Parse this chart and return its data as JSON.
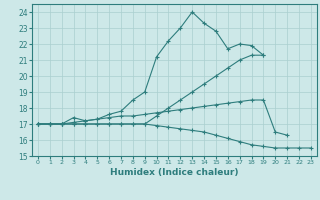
{
  "xlabel": "Humidex (Indice chaleur)",
  "ylabel": "",
  "xlim": [
    -0.5,
    23.5
  ],
  "ylim": [
    15,
    24.5
  ],
  "yticks": [
    15,
    16,
    17,
    18,
    19,
    20,
    21,
    22,
    23,
    24
  ],
  "xticks": [
    0,
    1,
    2,
    3,
    4,
    5,
    6,
    7,
    8,
    9,
    10,
    11,
    12,
    13,
    14,
    15,
    16,
    17,
    18,
    19,
    20,
    21,
    22,
    23
  ],
  "background_color": "#cde8e8",
  "grid_color": "#aacfcf",
  "line_color": "#2e7d7d",
  "lines": [
    {
      "x": [
        0,
        1,
        2,
        3,
        4,
        5,
        6,
        7,
        8,
        9,
        10,
        11,
        12,
        13,
        14,
        15,
        16,
        17,
        18,
        19
      ],
      "y": [
        17,
        17,
        17,
        17.4,
        17.2,
        17.3,
        17.6,
        17.8,
        18.5,
        19.0,
        21.2,
        22.2,
        23.0,
        24.0,
        23.3,
        22.8,
        21.7,
        22.0,
        21.9,
        21.3
      ]
    },
    {
      "x": [
        0,
        1,
        2,
        3,
        4,
        5,
        6,
        7,
        8,
        9,
        10,
        11,
        12,
        13,
        14,
        15,
        16,
        17,
        18,
        19
      ],
      "y": [
        17,
        17,
        17,
        17,
        17,
        17,
        17,
        17,
        17,
        17,
        17.5,
        18.0,
        18.5,
        19.0,
        19.5,
        20.0,
        20.5,
        21.0,
        21.3,
        21.3
      ]
    },
    {
      "x": [
        0,
        1,
        2,
        3,
        4,
        5,
        6,
        7,
        8,
        9,
        10,
        11,
        12,
        13,
        14,
        15,
        16,
        17,
        18,
        19,
        20,
        21
      ],
      "y": [
        17,
        17,
        17,
        17.1,
        17.2,
        17.3,
        17.4,
        17.5,
        17.5,
        17.6,
        17.7,
        17.8,
        17.9,
        18.0,
        18.1,
        18.2,
        18.3,
        18.4,
        18.5,
        18.5,
        16.5,
        16.3
      ]
    },
    {
      "x": [
        0,
        1,
        2,
        3,
        4,
        5,
        6,
        7,
        8,
        9,
        10,
        11,
        12,
        13,
        14,
        15,
        16,
        17,
        18,
        19,
        20,
        21,
        22,
        23
      ],
      "y": [
        17,
        17,
        17,
        17,
        17,
        17,
        17,
        17,
        17,
        17,
        16.9,
        16.8,
        16.7,
        16.6,
        16.5,
        16.3,
        16.1,
        15.9,
        15.7,
        15.6,
        15.5,
        15.5,
        15.5,
        15.5
      ]
    }
  ]
}
